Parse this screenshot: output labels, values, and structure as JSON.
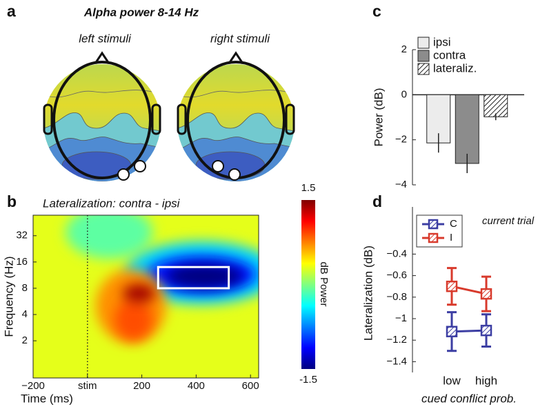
{
  "chart_data": [
    {
      "type": "topomap",
      "label": "a",
      "title": "Alpha power 8-14 Hz",
      "maps": [
        "left stimuli",
        "right stimuli"
      ]
    },
    {
      "type": "heatmap",
      "label": "b",
      "title": "Lateralization: contra - ipsi",
      "x_label": "Time (ms)",
      "y_label": "Frequency (Hz)",
      "xlim": [
        -200,
        630
      ],
      "xticks": [
        {
          "value": -200,
          "label": "−200"
        },
        {
          "value": 0,
          "label": "stim"
        },
        200,
        400,
        600
      ],
      "ylim": [
        0.75,
        55
      ],
      "yticks": [
        2,
        4,
        8,
        16,
        32
      ],
      "log_y": true,
      "stim_line": 0,
      "base_value": 0.3,
      "field": [
        {
          "time": 80,
          "freq": 35,
          "value": -0.1,
          "time_span": 160,
          "freq_span": 1.0
        },
        {
          "time": 420,
          "freq": 12,
          "value": -0.5,
          "time_span": 280,
          "freq_span": 1.2
        },
        {
          "time": 420,
          "freq": 11.5,
          "value": -1.1,
          "time_span": 200,
          "freq_span": 0.7
        },
        {
          "time": 430,
          "freq": 11,
          "value": -1.5,
          "time_span": 140,
          "freq_span": 0.45
        },
        {
          "time": 160,
          "freq": 5,
          "value": 0.7,
          "time_span": 130,
          "freq_span": 1.4
        },
        {
          "time": 170,
          "freq": 3.5,
          "value": 0.9,
          "time_span": 70,
          "freq_span": 0.8
        },
        {
          "time": 190,
          "freq": 7,
          "value": 1.4,
          "time_span": 60,
          "freq_span": 0.35
        }
      ],
      "roi": {
        "time": [
          260,
          520
        ],
        "freq": [
          8,
          14
        ]
      },
      "clim": [
        -1.5,
        1.5
      ],
      "colorbar_ticks": [
        1.5,
        -1.5
      ],
      "colorbar_label": "dB Power",
      "colormap": "jet"
    },
    {
      "type": "bar",
      "label": "c",
      "y_label": "Power (dB)",
      "categories": [
        "ipsi",
        "contra",
        "lateraliz."
      ],
      "values": [
        -2.14,
        -3.05,
        -0.98
      ],
      "errors": [
        0.43,
        0.43,
        0.15
      ],
      "colors": [
        "#ececec",
        "#8c8c8c",
        "#ffffff"
      ],
      "hatch": [
        false,
        false,
        true
      ],
      "ylim": [
        -4,
        2
      ],
      "yticks": [
        {
          "value": -4,
          "label": "−4"
        },
        {
          "value": -2,
          "label": "−2"
        },
        0,
        2
      ],
      "legend": "upper left"
    },
    {
      "type": "line",
      "label": "d",
      "annotation": "current trial",
      "x_label": "cued conflict prob.",
      "y_label": "Lateralization (dB)",
      "categories": [
        "low",
        "high"
      ],
      "series": [
        {
          "name": "C",
          "color": "#3c3ea3",
          "values": [
            -1.12,
            -1.11
          ],
          "errors": [
            0.18,
            0.15
          ]
        },
        {
          "name": "I",
          "color": "#d83a2c",
          "values": [
            -0.7,
            -0.77
          ],
          "errors": [
            0.17,
            0.16
          ]
        }
      ],
      "ylim": [
        -1.5,
        0
      ],
      "yticks": [
        {
          "value": -1.4,
          "label": "−1.4"
        },
        {
          "value": -1.2,
          "label": "−1.2"
        },
        {
          "value": -1,
          "label": "−1"
        },
        {
          "value": -0.8,
          "label": "−0.8"
        },
        {
          "value": -0.6,
          "label": "−0.6"
        },
        {
          "value": -0.4,
          "label": "−0.4"
        }
      ],
      "legend": "upper left"
    }
  ]
}
